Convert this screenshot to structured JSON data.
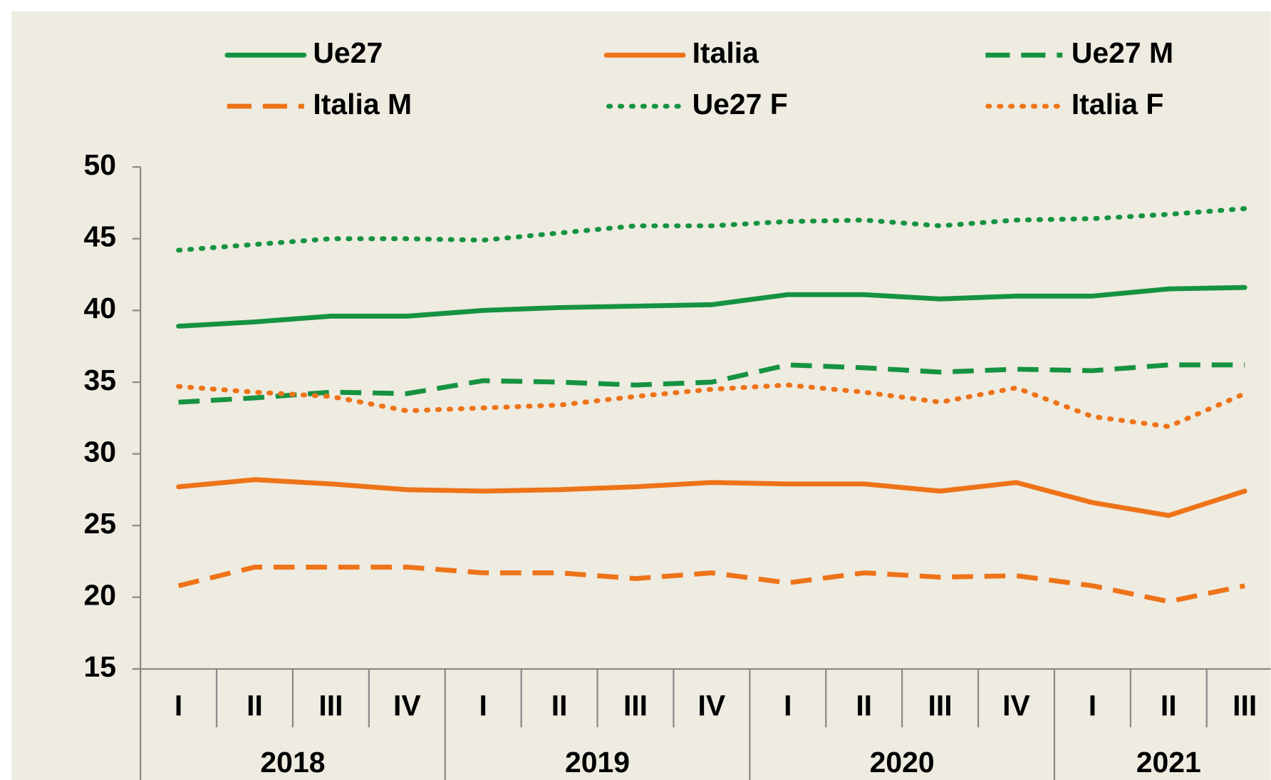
{
  "chart_data": {
    "type": "line",
    "categories": [
      "I",
      "II",
      "III",
      "IV",
      "I",
      "II",
      "III",
      "IV",
      "I",
      "II",
      "III",
      "IV",
      "I",
      "II",
      "III"
    ],
    "years": [
      "2018",
      "2019",
      "2020",
      "2021"
    ],
    "ylim": [
      15,
      50
    ],
    "yticks": [
      15,
      20,
      25,
      30,
      35,
      40,
      45,
      50
    ],
    "series": [
      {
        "name": "Ue27",
        "color": "#159341",
        "dash": "solid",
        "values": [
          38.9,
          39.2,
          39.6,
          39.6,
          40.0,
          40.2,
          40.3,
          40.4,
          41.1,
          41.1,
          40.8,
          41.0,
          41.0,
          41.5,
          41.6
        ]
      },
      {
        "name": "Italia",
        "color": "#ee7318",
        "dash": "solid",
        "values": [
          27.7,
          28.2,
          27.9,
          27.5,
          27.4,
          27.5,
          27.7,
          28.0,
          27.9,
          27.9,
          27.4,
          28.0,
          26.6,
          25.7,
          27.4
        ]
      },
      {
        "name": "Ue27 M",
        "color": "#159341",
        "dash": "dashed",
        "values": [
          33.6,
          33.9,
          34.3,
          34.2,
          35.1,
          35.0,
          34.8,
          35.0,
          36.2,
          36.0,
          35.7,
          35.9,
          35.8,
          36.2,
          36.2
        ]
      },
      {
        "name": "Italia M",
        "color": "#ee7318",
        "dash": "dashed",
        "values": [
          20.8,
          22.1,
          22.1,
          22.1,
          21.7,
          21.7,
          21.3,
          21.7,
          21.0,
          21.7,
          21.4,
          21.5,
          20.8,
          19.7,
          20.8
        ]
      },
      {
        "name": "Ue27 F",
        "color": "#159341",
        "dash": "dotted",
        "values": [
          44.2,
          44.6,
          45.0,
          45.0,
          44.9,
          45.4,
          45.9,
          45.9,
          46.2,
          46.3,
          45.9,
          46.3,
          46.4,
          46.7,
          47.1
        ]
      },
      {
        "name": "Italia F",
        "color": "#ee7318",
        "dash": "dotted",
        "values": [
          34.7,
          34.3,
          34.0,
          33.0,
          33.2,
          33.4,
          34.0,
          34.5,
          34.8,
          34.3,
          33.6,
          34.6,
          32.6,
          31.9,
          34.2
        ]
      }
    ]
  }
}
